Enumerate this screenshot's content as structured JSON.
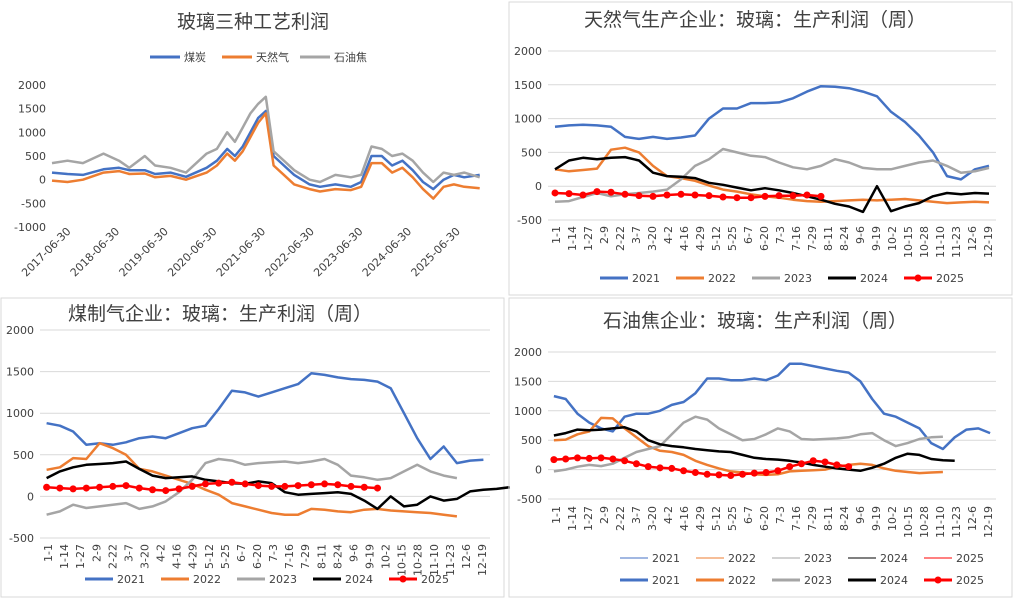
{
  "chart_data": [
    {
      "type": "line",
      "title": "玻璃三种工艺利润",
      "ylim": [
        -1000,
        2000
      ],
      "yticks": [
        "2000",
        "1500",
        "1000",
        "500",
        "0",
        "-500",
        "-1000"
      ],
      "xticks": [
        "2017-06-30",
        "2018-06-30",
        "2019-06-30",
        "2020-06-30",
        "2021-06-30",
        "2022-06-30",
        "2023-06-30",
        "2024-06-30",
        "2025-06-30"
      ],
      "legend": [
        "煤炭",
        "天然气",
        "石油焦"
      ],
      "series": [
        {
          "name": "煤炭",
          "color": "#4472c4",
          "t": [
            0,
            0.3,
            0.6,
            1,
            1.3,
            1.5,
            1.8,
            2,
            2.3,
            2.6,
            3,
            3.2,
            3.4,
            3.55,
            3.7,
            3.85,
            4,
            4.15,
            4.3,
            4.5,
            4.7,
            5,
            5.2,
            5.5,
            5.8,
            6,
            6.2,
            6.4,
            6.6,
            6.8,
            7,
            7.2,
            7.4,
            7.6,
            7.8,
            8,
            8.3
          ],
          "values": [
            150,
            120,
            100,
            220,
            250,
            200,
            200,
            120,
            150,
            60,
            250,
            400,
            650,
            500,
            700,
            1000,
            1300,
            1450,
            500,
            300,
            100,
            -100,
            -150,
            -100,
            -150,
            -50,
            500,
            500,
            300,
            400,
            200,
            -50,
            -200,
            0,
            100,
            50,
            100
          ]
        },
        {
          "name": "天然气",
          "color": "#ed7d31",
          "t": [
            0,
            0.3,
            0.6,
            1,
            1.3,
            1.5,
            1.8,
            2,
            2.3,
            2.6,
            3,
            3.2,
            3.4,
            3.55,
            3.7,
            3.85,
            4,
            4.15,
            4.3,
            4.5,
            4.7,
            5,
            5.2,
            5.5,
            5.8,
            6,
            6.2,
            6.4,
            6.6,
            6.8,
            7,
            7.2,
            7.4,
            7.6,
            7.8,
            8,
            8.3
          ],
          "values": [
            -20,
            -50,
            0,
            150,
            180,
            120,
            130,
            50,
            80,
            0,
            150,
            300,
            550,
            400,
            600,
            900,
            1200,
            1400,
            300,
            100,
            -100,
            -200,
            -250,
            -200,
            -220,
            -150,
            350,
            350,
            150,
            250,
            50,
            -200,
            -400,
            -150,
            -100,
            -150,
            -180
          ]
        },
        {
          "name": "石油焦",
          "color": "#a5a5a5",
          "t": [
            0,
            0.3,
            0.6,
            1,
            1.3,
            1.5,
            1.8,
            2,
            2.3,
            2.6,
            3,
            3.2,
            3.4,
            3.55,
            3.7,
            3.85,
            4,
            4.15,
            4.3,
            4.5,
            4.7,
            5,
            5.2,
            5.5,
            5.8,
            6,
            6.2,
            6.4,
            6.6,
            6.8,
            7,
            7.2,
            7.4,
            7.6,
            7.8,
            8,
            8.3
          ],
          "values": [
            350,
            400,
            350,
            550,
            400,
            250,
            500,
            300,
            250,
            150,
            550,
            650,
            1000,
            800,
            1100,
            1400,
            1600,
            1750,
            600,
            400,
            200,
            0,
            -50,
            100,
            50,
            100,
            700,
            650,
            500,
            550,
            400,
            150,
            -50,
            150,
            100,
            150,
            50
          ]
        }
      ]
    },
    {
      "type": "line",
      "title": "天然气生产企业：玻璃：生产利润（周）",
      "ylim": [
        -500,
        2000
      ],
      "yticks": [
        "2000",
        "1500",
        "1000",
        "500",
        "0",
        "-500"
      ],
      "xticks": [
        "1-1",
        "1-14",
        "1-27",
        "2-9",
        "2-22",
        "3-7",
        "3-20",
        "4-2",
        "4-16",
        "4-29",
        "5-12",
        "5-25",
        "6-7",
        "6-20",
        "7-3",
        "7-16",
        "7-29",
        "8-11",
        "8-24",
        "9-6",
        "9-19",
        "10-2",
        "10-15",
        "10-28",
        "11-10",
        "11-23",
        "12-6",
        "12-19"
      ],
      "legend": [
        "2021",
        "2022",
        "2023",
        "2024",
        "2025"
      ],
      "series": [
        {
          "name": "2021",
          "color": "#4472c4",
          "markers": false,
          "values": [
            880,
            900,
            910,
            900,
            880,
            730,
            700,
            730,
            700,
            720,
            750,
            1000,
            1150,
            1150,
            1230,
            1230,
            1240,
            1300,
            1400,
            1480,
            1470,
            1450,
            1400,
            1330,
            1100,
            950,
            750,
            500,
            150,
            100,
            250,
            300
          ]
        },
        {
          "name": "2022",
          "color": "#ed7d31",
          "markers": false,
          "values": [
            250,
            220,
            240,
            260,
            540,
            570,
            500,
            300,
            150,
            120,
            80,
            10,
            -50,
            -80,
            -120,
            -150,
            -170,
            -200,
            -220,
            -230,
            -220,
            -210,
            -200,
            -210,
            -200,
            -190,
            -210,
            -230,
            -250,
            -240,
            -230,
            -240
          ]
        },
        {
          "name": "2023",
          "color": "#a5a5a5",
          "markers": false,
          "values": [
            -230,
            -220,
            -160,
            -100,
            -150,
            -120,
            -100,
            -80,
            -50,
            100,
            300,
            400,
            550,
            500,
            450,
            430,
            350,
            280,
            250,
            300,
            400,
            350,
            270,
            250,
            250,
            300,
            350,
            380,
            300,
            200,
            220,
            270
          ]
        },
        {
          "name": "2024",
          "color": "#000000",
          "markers": false,
          "values": [
            250,
            380,
            420,
            400,
            420,
            430,
            380,
            200,
            150,
            140,
            120,
            50,
            20,
            -20,
            -60,
            -30,
            -60,
            -100,
            -150,
            -200,
            -260,
            -300,
            -380,
            0,
            -370,
            -300,
            -250,
            -150,
            -100,
            -120,
            -100,
            -110
          ]
        },
        {
          "name": "2025",
          "color": "#ff0000",
          "markers": true,
          "values": [
            -100,
            -110,
            -130,
            -80,
            -90,
            -120,
            -140,
            -150,
            -130,
            -120,
            -130,
            -140,
            -160,
            -170,
            -170,
            -150,
            -140,
            -140,
            -130,
            -150
          ]
        }
      ]
    },
    {
      "type": "line",
      "title": "煤制气企业：玻璃：生产利润（周）",
      "ylim": [
        -500,
        2000
      ],
      "yticks": [
        "2000",
        "1500",
        "1000",
        "500",
        "0",
        "-500"
      ],
      "xticks": [
        "1-1",
        "1-14",
        "1-27",
        "2-9",
        "2-22",
        "3-7",
        "3-20",
        "4-2",
        "4-16",
        "4-29",
        "5-12",
        "5-25",
        "6-7",
        "6-20",
        "7-3",
        "7-16",
        "7-29",
        "8-11",
        "8-24",
        "9-6",
        "9-19",
        "10-2",
        "10-15",
        "10-28",
        "11-10",
        "11-23",
        "12-6",
        "12-19"
      ],
      "legend": [
        "2021",
        "2022",
        "2023",
        "2024",
        "2025"
      ],
      "series": [
        {
          "name": "2021",
          "color": "#4472c4",
          "markers": false,
          "values": [
            880,
            850,
            780,
            620,
            640,
            620,
            650,
            700,
            720,
            700,
            760,
            820,
            850,
            1050,
            1270,
            1250,
            1200,
            1250,
            1300,
            1350,
            1480,
            1460,
            1430,
            1410,
            1400,
            1380,
            1300,
            1000,
            700,
            450,
            600,
            400,
            430,
            440
          ]
        },
        {
          "name": "2022",
          "color": "#ed7d31",
          "markers": false,
          "values": [
            320,
            350,
            460,
            450,
            640,
            580,
            500,
            330,
            300,
            250,
            200,
            150,
            80,
            20,
            -80,
            -120,
            -160,
            -200,
            -220,
            -220,
            -150,
            -160,
            -180,
            -190,
            -160,
            -150,
            -170,
            -180,
            -190,
            -200,
            -220,
            -240
          ]
        },
        {
          "name": "2023",
          "color": "#a5a5a5",
          "markers": false,
          "values": [
            -220,
            -180,
            -100,
            -140,
            -120,
            -100,
            -80,
            -150,
            -120,
            -60,
            50,
            200,
            400,
            450,
            430,
            380,
            400,
            410,
            420,
            400,
            420,
            450,
            380,
            250,
            230,
            200,
            220,
            300,
            380,
            300,
            250,
            220
          ]
        },
        {
          "name": "2024",
          "color": "#000000",
          "markers": false,
          "values": [
            220,
            300,
            350,
            380,
            390,
            400,
            420,
            330,
            250,
            220,
            230,
            240,
            200,
            180,
            160,
            150,
            180,
            160,
            50,
            20,
            30,
            40,
            50,
            30,
            -50,
            -150,
            0,
            -120,
            -100,
            0,
            -50,
            -30,
            60,
            80,
            90,
            110
          ]
        },
        {
          "name": "2025",
          "color": "#ff0000",
          "markers": true,
          "values": [
            110,
            100,
            90,
            100,
            110,
            120,
            130,
            100,
            80,
            70,
            90,
            120,
            150,
            160,
            170,
            150,
            130,
            120,
            120,
            130,
            140,
            150,
            140,
            120,
            110,
            100
          ]
        }
      ]
    },
    {
      "type": "line",
      "title": "石油焦企业：玻璃：生产利润（周）",
      "ylim": [
        -500,
        2000
      ],
      "yticks": [
        "2000",
        "1500",
        "1000",
        "500",
        "0",
        "-500"
      ],
      "xticks": [
        "1-1",
        "1-14",
        "1-27",
        "2-9",
        "2-22",
        "3-7",
        "3-20",
        "4-2",
        "4-16",
        "4-29",
        "5-12",
        "5-25",
        "6-7",
        "6-20",
        "7-3",
        "7-16",
        "7-29",
        "8-11",
        "8-24",
        "9-6",
        "9-19",
        "10-2",
        "10-15",
        "10-28",
        "11-10",
        "11-23",
        "12-6",
        "12-19"
      ],
      "legend": [
        "2021",
        "2022",
        "2023",
        "2024",
        "2025"
      ],
      "legend_duplicate": [
        "2021",
        "2022",
        "2023",
        "2024",
        "2025"
      ],
      "series": [
        {
          "name": "2021",
          "color": "#4472c4",
          "markers": false,
          "values": [
            1250,
            1200,
            950,
            800,
            700,
            650,
            900,
            950,
            950,
            1000,
            1100,
            1150,
            1300,
            1550,
            1550,
            1520,
            1520,
            1550,
            1520,
            1600,
            1800,
            1800,
            1760,
            1720,
            1680,
            1650,
            1500,
            1200,
            950,
            900,
            800,
            700,
            450,
            350,
            550,
            680,
            700,
            620
          ]
        },
        {
          "name": "2022",
          "color": "#ed7d31",
          "markers": false,
          "values": [
            500,
            510,
            600,
            650,
            880,
            870,
            700,
            550,
            400,
            320,
            300,
            250,
            150,
            80,
            20,
            -30,
            -50,
            -80,
            -90,
            -80,
            -30,
            -20,
            -10,
            0,
            50,
            80,
            100,
            80,
            20,
            -20,
            -40,
            -60,
            -50,
            -40
          ]
        },
        {
          "name": "2023",
          "color": "#a5a5a5",
          "markers": false,
          "values": [
            -30,
            0,
            50,
            80,
            60,
            100,
            200,
            300,
            350,
            400,
            600,
            800,
            900,
            850,
            700,
            600,
            500,
            520,
            600,
            700,
            650,
            520,
            510,
            520,
            530,
            550,
            600,
            620,
            500,
            400,
            450,
            520,
            550,
            560
          ]
        },
        {
          "name": "2024",
          "color": "#000000",
          "markers": false,
          "values": [
            580,
            620,
            680,
            670,
            680,
            700,
            720,
            650,
            500,
            430,
            400,
            380,
            350,
            330,
            310,
            300,
            250,
            200,
            180,
            170,
            150,
            120,
            80,
            50,
            20,
            0,
            -20,
            30,
            100,
            200,
            270,
            250,
            180,
            160,
            150
          ]
        },
        {
          "name": "2025",
          "color": "#ff0000",
          "markers": true,
          "values": [
            170,
            180,
            200,
            190,
            200,
            180,
            150,
            100,
            50,
            30,
            20,
            -20,
            -50,
            -80,
            -90,
            -100,
            -80,
            -60,
            -50,
            -20,
            50,
            100,
            150,
            130,
            80,
            50
          ]
        }
      ]
    }
  ]
}
